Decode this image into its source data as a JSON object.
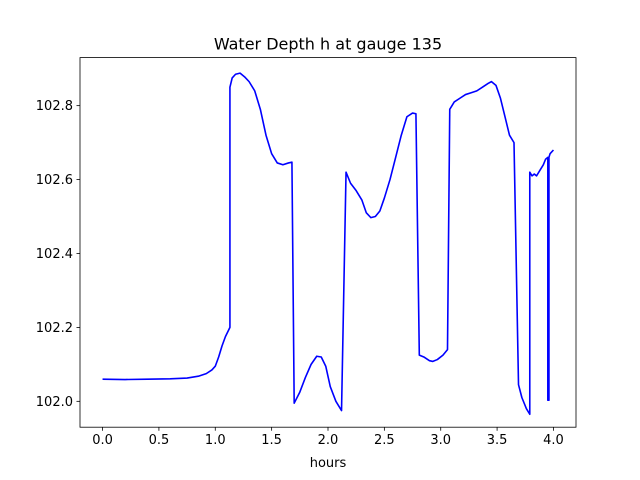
{
  "chart_data": {
    "type": "line",
    "title": "Water Depth h at gauge 135",
    "xlabel": "hours",
    "ylabel": "",
    "xlim": [
      -0.2,
      4.2
    ],
    "ylim": [
      101.93,
      102.93
    ],
    "xticks": [
      0.0,
      0.5,
      1.0,
      1.5,
      2.0,
      2.5,
      3.0,
      3.5,
      4.0
    ],
    "xtick_labels": [
      "0.0",
      "0.5",
      "1.0",
      "1.5",
      "2.0",
      "2.5",
      "3.0",
      "3.5",
      "4.0"
    ],
    "yticks": [
      102.0,
      102.2,
      102.4,
      102.6,
      102.8
    ],
    "ytick_labels": [
      "102.0",
      "102.2",
      "102.4",
      "102.6",
      "102.8"
    ],
    "grid": false,
    "series": [
      {
        "color": "#0000ff",
        "x": [
          0.0,
          0.2,
          0.4,
          0.6,
          0.75,
          0.85,
          0.92,
          0.97,
          1.0,
          1.03,
          1.06,
          1.09,
          1.13,
          1.13,
          1.15,
          1.18,
          1.22,
          1.26,
          1.3,
          1.35,
          1.4,
          1.45,
          1.5,
          1.55,
          1.6,
          1.65,
          1.68,
          1.7,
          1.7,
          1.75,
          1.8,
          1.85,
          1.9,
          1.94,
          1.98,
          2.02,
          2.07,
          2.12,
          2.16,
          2.16,
          2.2,
          2.25,
          2.3,
          2.34,
          2.38,
          2.42,
          2.46,
          2.5,
          2.55,
          2.6,
          2.65,
          2.7,
          2.75,
          2.78,
          2.81,
          2.81,
          2.85,
          2.9,
          2.93,
          2.97,
          3.02,
          3.06,
          3.08,
          3.08,
          3.12,
          3.17,
          3.22,
          3.27,
          3.32,
          3.37,
          3.42,
          3.45,
          3.49,
          3.53,
          3.57,
          3.61,
          3.65,
          3.69,
          3.69,
          3.72,
          3.76,
          3.79,
          3.79,
          3.81,
          3.83,
          3.85,
          3.88,
          3.91,
          3.93,
          3.95,
          3.95,
          3.96,
          3.96,
          3.97,
          4.0
        ],
        "y": [
          102.06,
          102.059,
          102.06,
          102.061,
          102.063,
          102.068,
          102.075,
          102.085,
          102.095,
          102.12,
          102.15,
          102.175,
          102.2,
          102.85,
          102.875,
          102.885,
          102.888,
          102.878,
          102.865,
          102.84,
          102.79,
          102.72,
          102.67,
          102.645,
          102.64,
          102.645,
          102.647,
          101.995,
          101.995,
          102.025,
          102.065,
          102.1,
          102.122,
          102.12,
          102.095,
          102.04,
          102.0,
          101.975,
          102.62,
          102.62,
          102.59,
          102.57,
          102.545,
          102.51,
          102.497,
          102.5,
          102.515,
          102.55,
          102.6,
          102.66,
          102.72,
          102.77,
          102.78,
          102.778,
          102.125,
          102.125,
          102.12,
          102.11,
          102.108,
          102.113,
          102.125,
          102.14,
          102.79,
          102.79,
          102.81,
          102.82,
          102.83,
          102.835,
          102.84,
          102.85,
          102.86,
          102.865,
          102.855,
          102.82,
          102.77,
          102.72,
          102.7,
          102.045,
          102.045,
          102.01,
          101.98,
          101.965,
          102.62,
          102.61,
          102.615,
          102.61,
          102.625,
          102.64,
          102.655,
          102.66,
          102.003,
          102.003,
          102.66,
          102.67,
          102.68
        ]
      }
    ]
  }
}
